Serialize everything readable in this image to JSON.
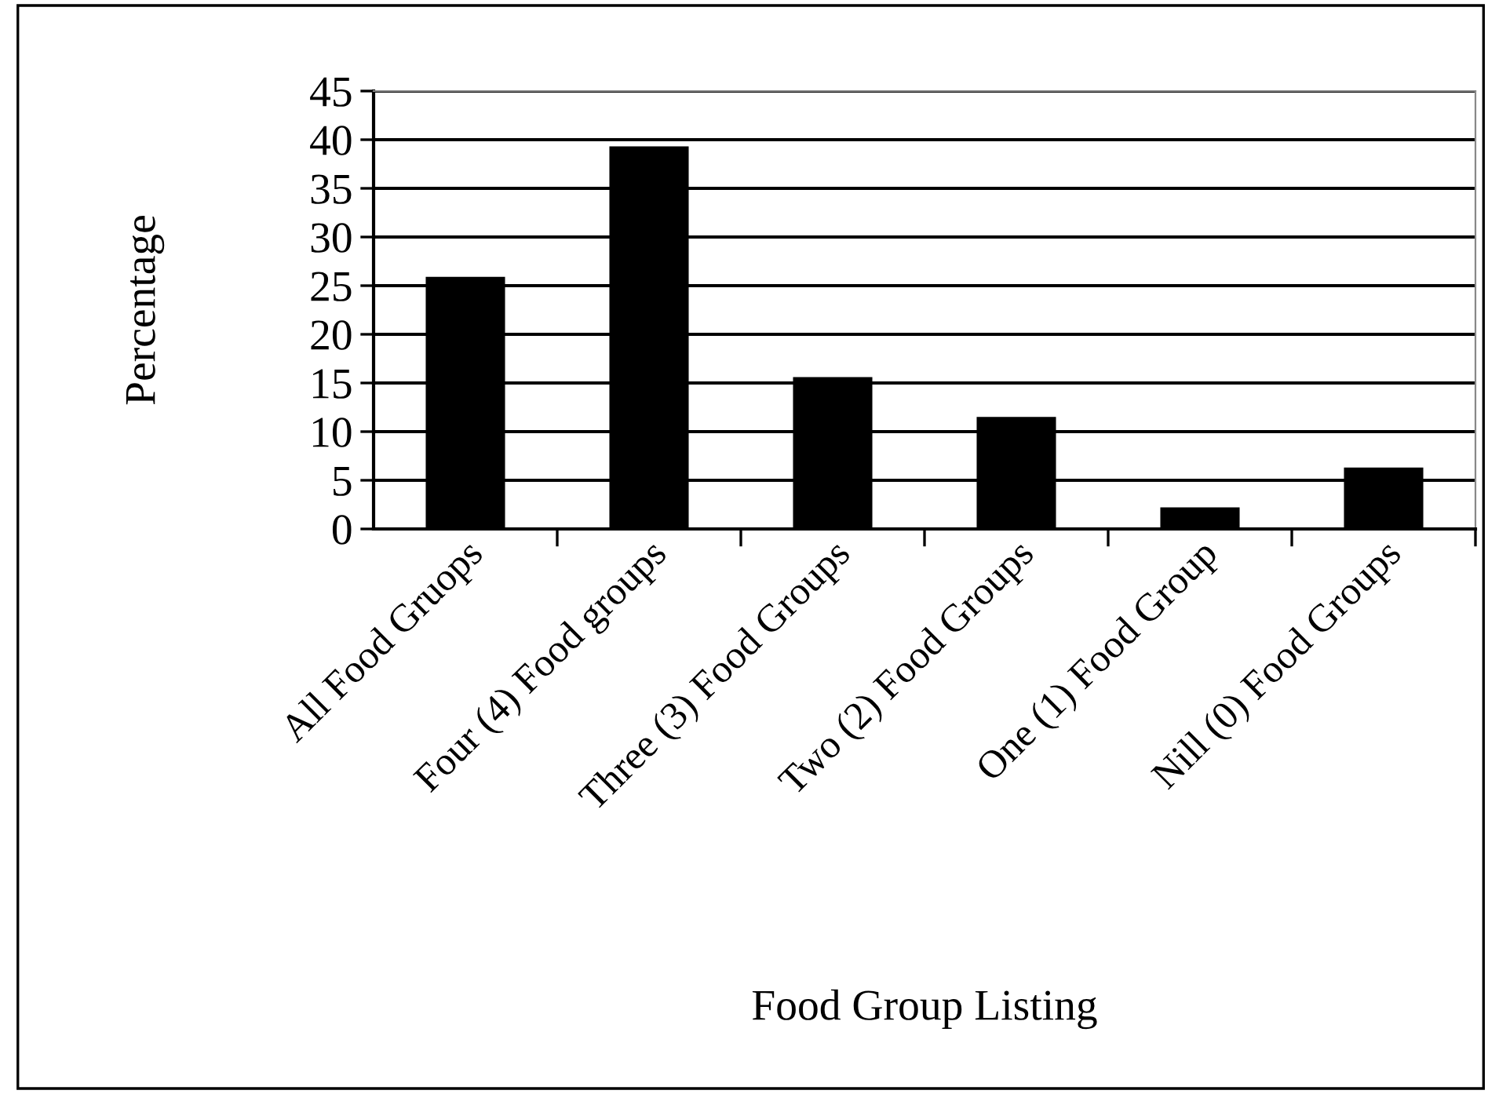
{
  "chart_data": {
    "type": "bar",
    "xlabel": "Food Group Listing",
    "ylabel": "Percentage",
    "categories": [
      "All Food Gruops",
      "Four (4) Food groups",
      "Three (3) Food Groups",
      "Two (2) Food Groups",
      "One (1) Food Group",
      "Nill (0) Food Groups"
    ],
    "values": [
      25.8,
      39.2,
      15.5,
      11.4,
      2.1,
      6.2
    ],
    "color": "#000000",
    "ylim": [
      0,
      45
    ],
    "yticks": [
      0,
      5,
      10,
      15,
      20,
      25,
      30,
      35,
      40,
      45
    ],
    "grid": "y"
  }
}
